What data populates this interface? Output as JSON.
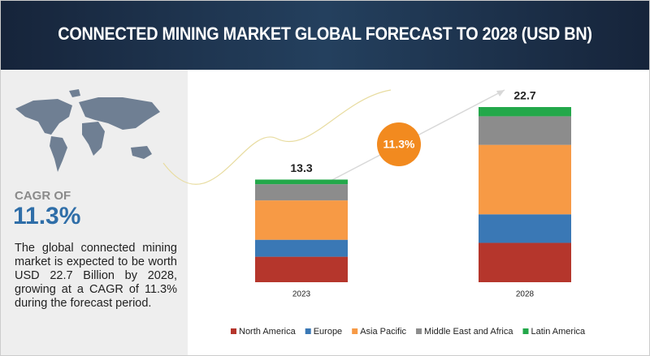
{
  "header": {
    "title": "CONNECTED MINING MARKET GLOBAL FORECAST TO 2028 (USD BN)"
  },
  "summary": {
    "cagr_label": "CAGR OF",
    "cagr_value": "11.3%",
    "description": "The global connected mining market is expected to be worth USD 22.7 Billion by 2028, growing at a CAGR of 11.3% during the forecast period."
  },
  "chart_data": {
    "type": "stacked_bar",
    "categories": [
      "2023",
      "2028"
    ],
    "series": [
      {
        "name": "North America",
        "color": "#b5362c",
        "values": [
          3.3,
          5.1
        ]
      },
      {
        "name": "Europe",
        "color": "#3a78b5",
        "values": [
          2.2,
          3.7
        ]
      },
      {
        "name": "Asia Pacific",
        "color": "#f79a45",
        "values": [
          5.1,
          9.0
        ]
      },
      {
        "name": "Middle East and Africa",
        "color": "#8c8c8c",
        "values": [
          2.1,
          3.7
        ]
      },
      {
        "name": "Latin America",
        "color": "#23a84a",
        "values": [
          0.6,
          1.2
        ]
      }
    ],
    "totals": [
      13.3,
      22.7
    ],
    "annotation": "11.3%"
  }
}
